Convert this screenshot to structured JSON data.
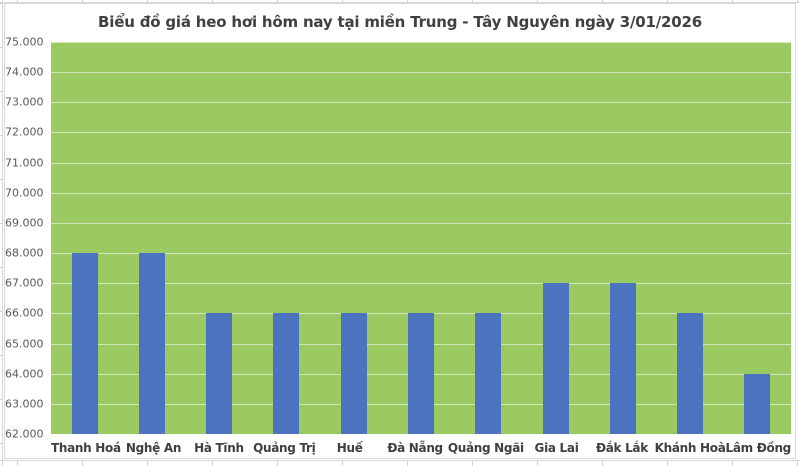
{
  "chart_data": {
    "type": "bar",
    "title": "Biểu đồ giá heo hơi hôm nay tại miền Trung - Tây Nguyên ngày 3/01/2026",
    "categories": [
      "Thanh Hoá",
      "Nghệ An",
      "Hà Tĩnh",
      "Quảng Trị",
      "Huế",
      "Đà Nẵng",
      "Quảng Ngãi",
      "Gia Lai",
      "Đắk Lắk",
      "Khánh Hoà",
      "Lâm Đồng"
    ],
    "values": [
      68000,
      68000,
      66000,
      66000,
      66000,
      66000,
      66000,
      67000,
      67000,
      66000,
      64000
    ],
    "xlabel": "",
    "ylabel": "",
    "ylim": [
      62000,
      75000
    ],
    "y_tick_step": 1000,
    "y_tick_labels_top_to_bottom": [
      "75.000",
      "74.000",
      "73.000",
      "72.000",
      "71.000",
      "70.000",
      "69.000",
      "68.000",
      "67.000",
      "66.000",
      "65.000",
      "64.000",
      "63.000",
      "62.000"
    ],
    "legend": "none",
    "grid": "horizontal",
    "colors": {
      "plot_background": "#9CCA62",
      "bar_fill": "#4C73BF",
      "gridline": "rgba(255,255,255,0.55)",
      "title_text": "#404040",
      "y_tick_text": "#595959",
      "x_tick_text": "#404040",
      "chart_border": "#d9d9d9"
    }
  }
}
